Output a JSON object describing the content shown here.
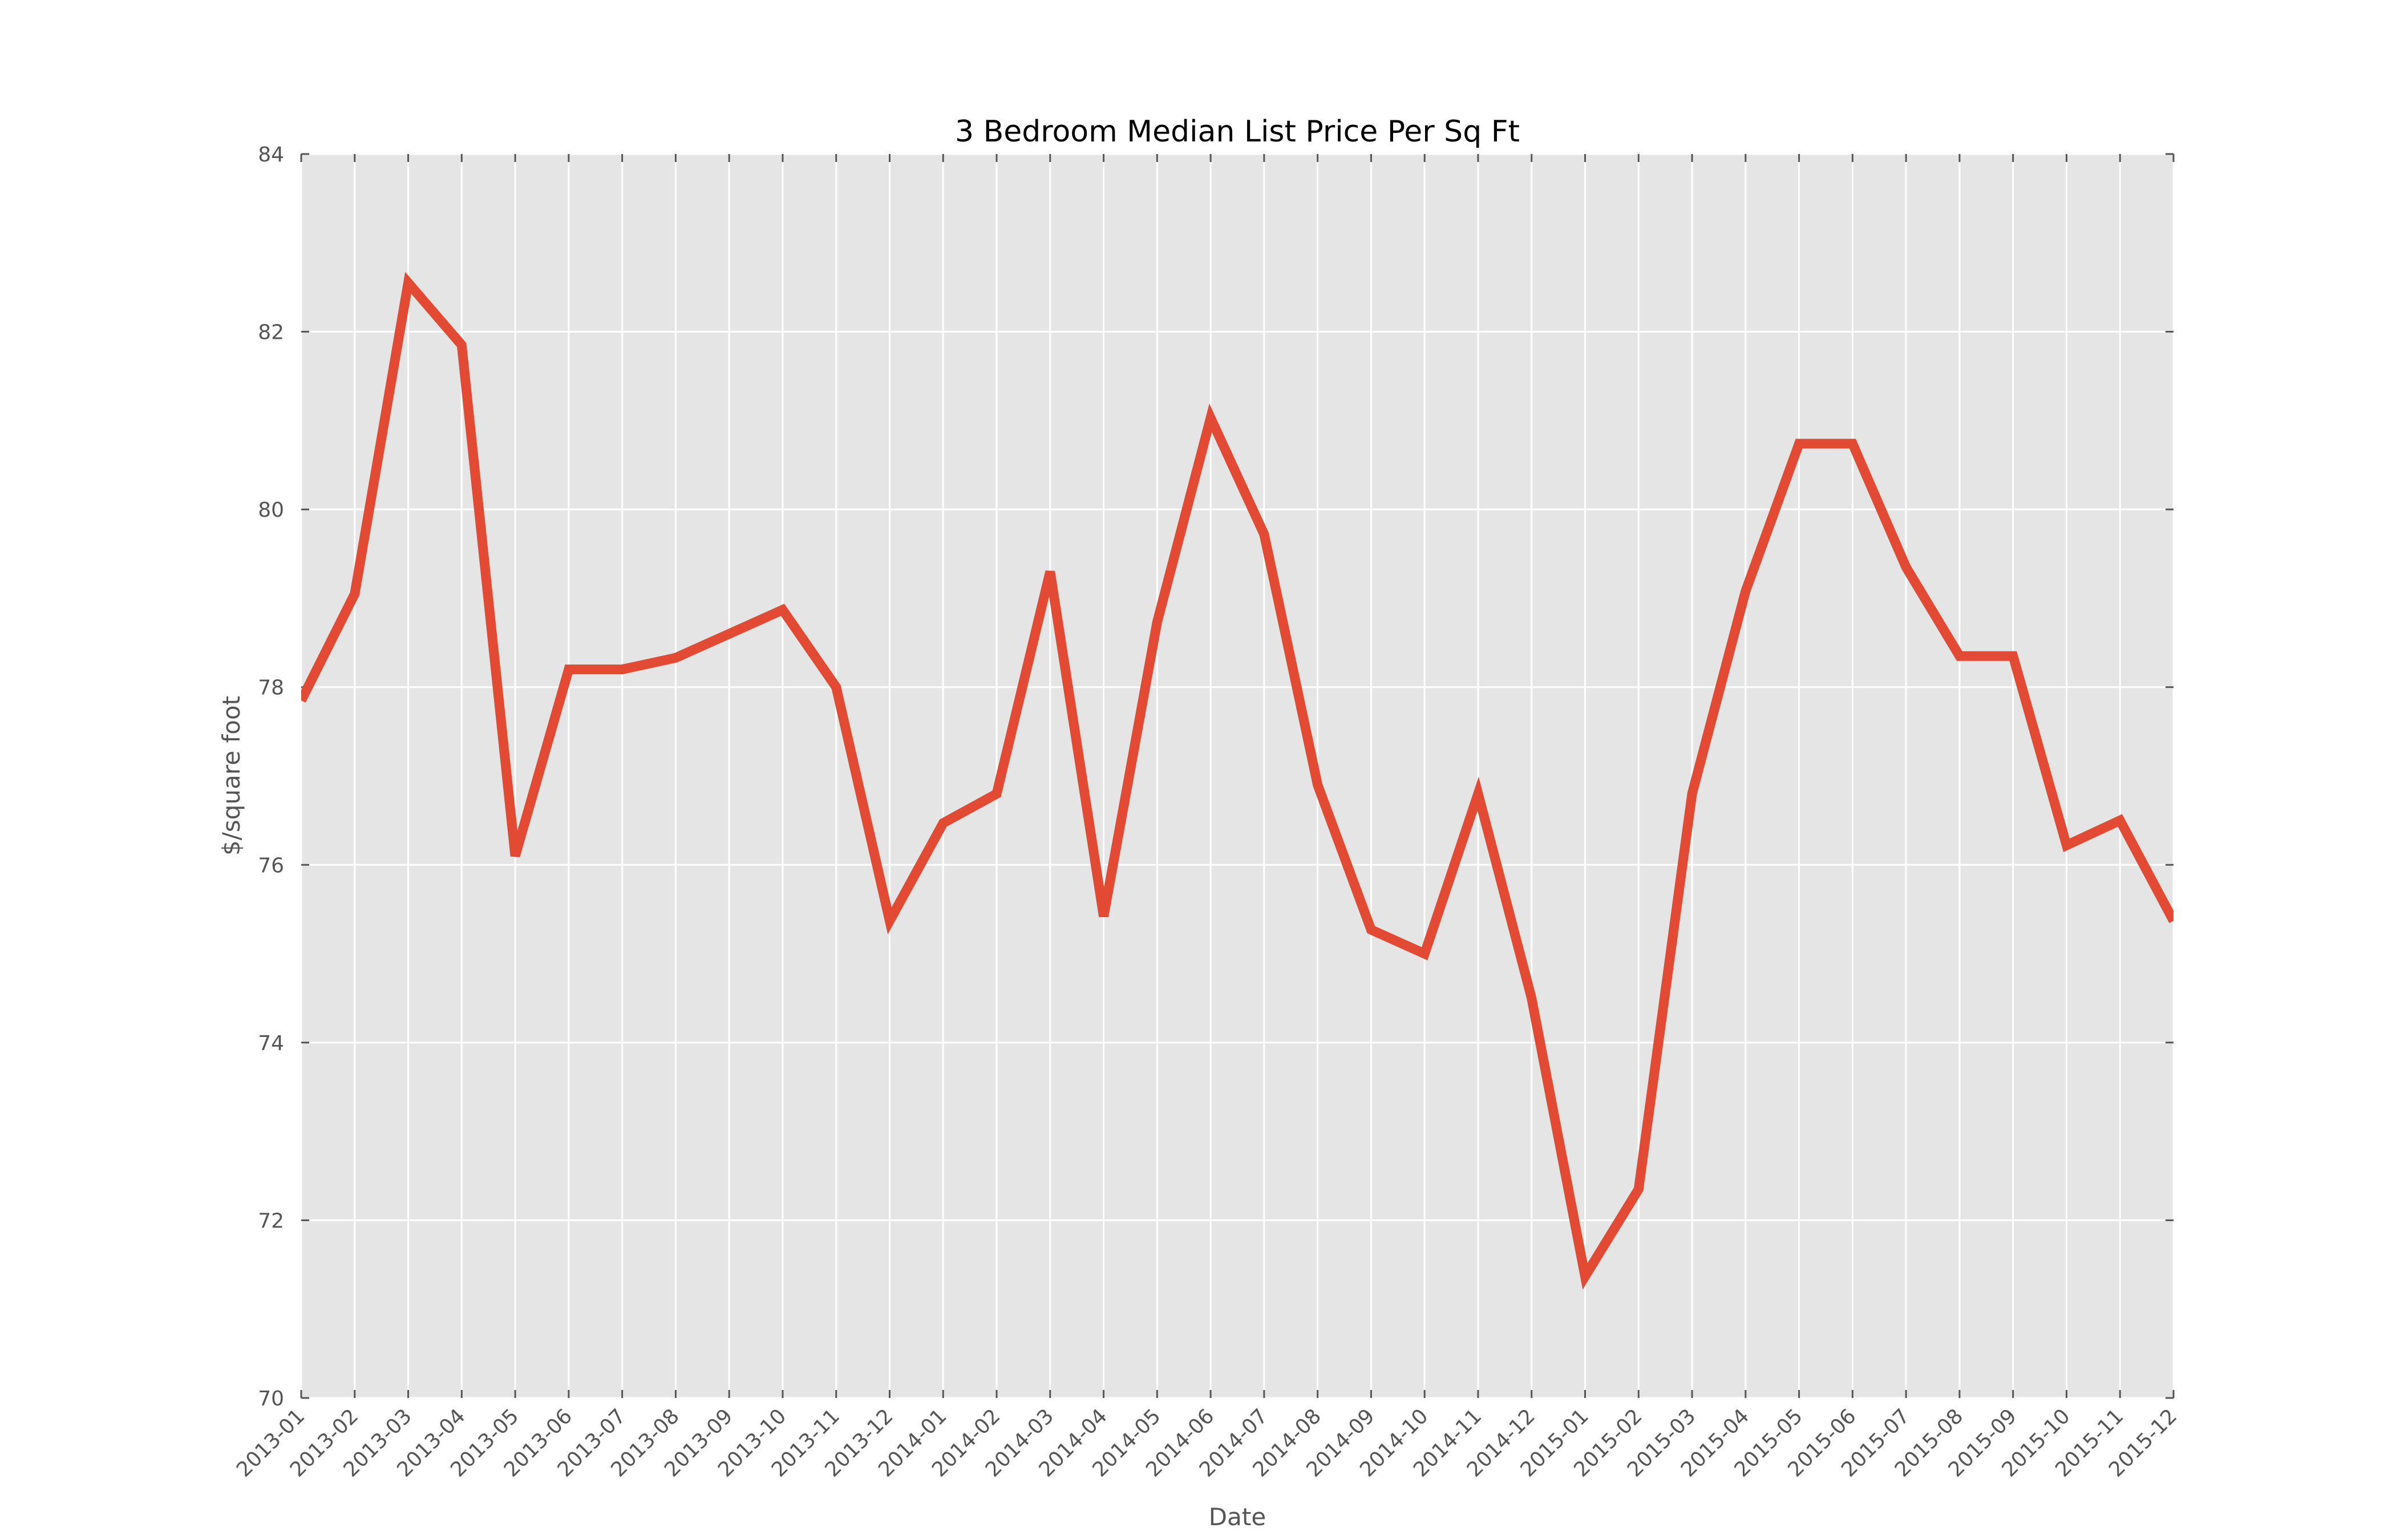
{
  "colors": {
    "plot_background": "#e5e5e5",
    "grid": "#ffffff",
    "line": "#e24a33",
    "tick": "#555555",
    "text": "#555555",
    "title": "#000000"
  },
  "chart_data": {
    "type": "line",
    "title": "3 Bedroom Median List Price Per Sq Ft",
    "xlabel": "Date",
    "ylabel": "$/square foot",
    "ylim": [
      70,
      84
    ],
    "yticks": [
      70,
      72,
      74,
      76,
      78,
      80,
      82,
      84
    ],
    "grid": true,
    "legend": "none",
    "categories": [
      "2013-01",
      "2013-02",
      "2013-03",
      "2013-04",
      "2013-05",
      "2013-06",
      "2013-07",
      "2013-08",
      "2013-09",
      "2013-10",
      "2013-11",
      "2013-12",
      "2014-01",
      "2014-02",
      "2014-03",
      "2014-04",
      "2014-05",
      "2014-06",
      "2014-07",
      "2014-08",
      "2014-09",
      "2014-10",
      "2014-11",
      "2014-12",
      "2015-01",
      "2015-02",
      "2015-03",
      "2015-04",
      "2015-05",
      "2015-06",
      "2015-07",
      "2015-08",
      "2015-09",
      "2015-10",
      "2015-11",
      "2015-12"
    ],
    "series": [
      {
        "values": [
          77.85,
          79.05,
          82.55,
          81.85,
          76.1,
          78.2,
          78.2,
          78.33,
          78.6,
          78.87,
          78.0,
          75.37,
          76.47,
          76.8,
          79.3,
          75.42,
          78.73,
          81.03,
          79.72,
          76.9,
          75.27,
          75.0,
          76.8,
          74.5,
          71.37,
          72.35,
          76.8,
          79.08,
          80.74,
          80.74,
          79.35,
          78.35,
          78.35,
          76.22,
          76.5,
          75.37
        ]
      }
    ]
  }
}
